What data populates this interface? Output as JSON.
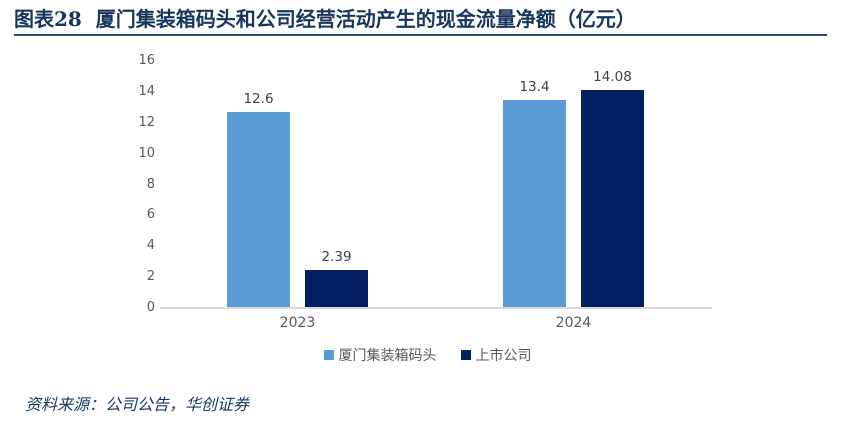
{
  "header": {
    "title": "图表28  厦门集装箱码头和公司经营活动产生的现金流量净额（亿元）"
  },
  "chart_data": {
    "type": "bar",
    "categories": [
      "2023",
      "2024"
    ],
    "series": [
      {
        "name": "厦门集装箱码头",
        "color": "#5B9BD5",
        "values": [
          12.6,
          13.4
        ],
        "labels": [
          "12.6",
          "13.4"
        ]
      },
      {
        "name": "上市公司",
        "color": "#002060",
        "values": [
          2.39,
          14.08
        ],
        "labels": [
          "2.39",
          "14.08"
        ]
      }
    ],
    "title": "",
    "xlabel": "",
    "ylabel": "",
    "ylim": [
      0,
      16
    ],
    "yticks": [
      0,
      2,
      4,
      6,
      8,
      10,
      12,
      14,
      16
    ],
    "grid": false,
    "legend_position": "bottom"
  },
  "colors": {
    "title_text": "#17365D",
    "title_rule": "#1F4E79",
    "axis_text": "#595959",
    "data_label": "#404040",
    "axis_line": "#D9D9D9",
    "series_light": "#5B9BD5",
    "series_dark": "#002060"
  },
  "footer": {
    "source": "资料来源：公司公告，华创证券"
  }
}
